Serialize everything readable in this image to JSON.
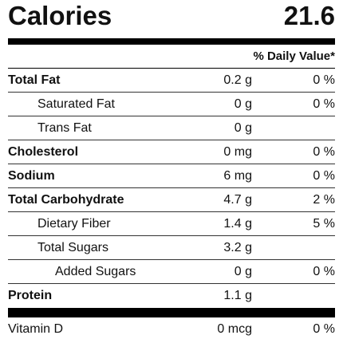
{
  "calories": {
    "label": "Calories",
    "value": "21.6"
  },
  "daily_value_header": "% Daily Value*",
  "nutrients": [
    {
      "name": "Total Fat",
      "amount": "0.2 g",
      "dv": "0 %"
    },
    {
      "name": "Saturated Fat",
      "amount": "0 g",
      "dv": "0 %"
    },
    {
      "name": "Trans Fat",
      "amount": "0 g",
      "dv": ""
    },
    {
      "name": "Cholesterol",
      "amount": "0 mg",
      "dv": "0 %"
    },
    {
      "name": "Sodium",
      "amount": "6 mg",
      "dv": "0 %"
    },
    {
      "name": "Total Carbohydrate",
      "amount": "4.7 g",
      "dv": "2 %"
    },
    {
      "name": "Dietary Fiber",
      "amount": "1.4 g",
      "dv": "5 %"
    },
    {
      "name": "Total Sugars",
      "amount": "3.2 g",
      "dv": ""
    },
    {
      "name": "Added Sugars",
      "amount": "0 g",
      "dv": "0 %"
    },
    {
      "name": "Protein",
      "amount": "1.1 g",
      "dv": ""
    }
  ],
  "vitamins": [
    {
      "name": "Vitamin D",
      "amount": "0 mcg",
      "dv": "0 %"
    }
  ]
}
